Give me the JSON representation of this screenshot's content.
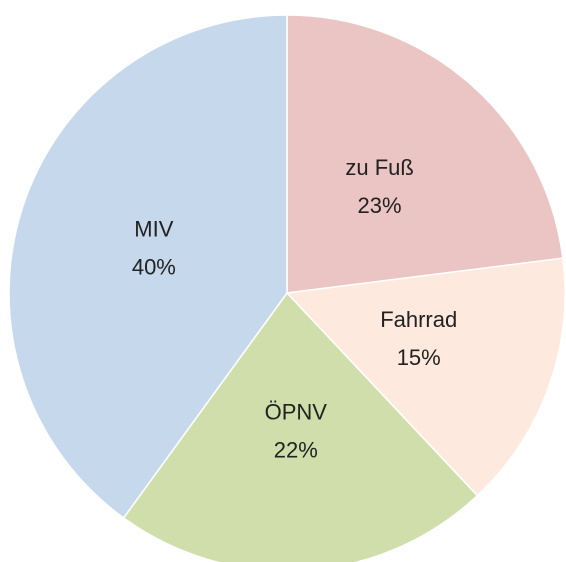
{
  "chart_data": {
    "type": "pie",
    "categories": [
      "zu Fuß",
      "Fahrrad",
      "ÖPNV",
      "MIV"
    ],
    "values": [
      23,
      15,
      22,
      40
    ],
    "value_labels": [
      "23%",
      "15%",
      "22%",
      "40%"
    ],
    "colors": [
      "#ebc4c4",
      "#fde9dd",
      "#cfdeab",
      "#c6d8ec"
    ]
  }
}
